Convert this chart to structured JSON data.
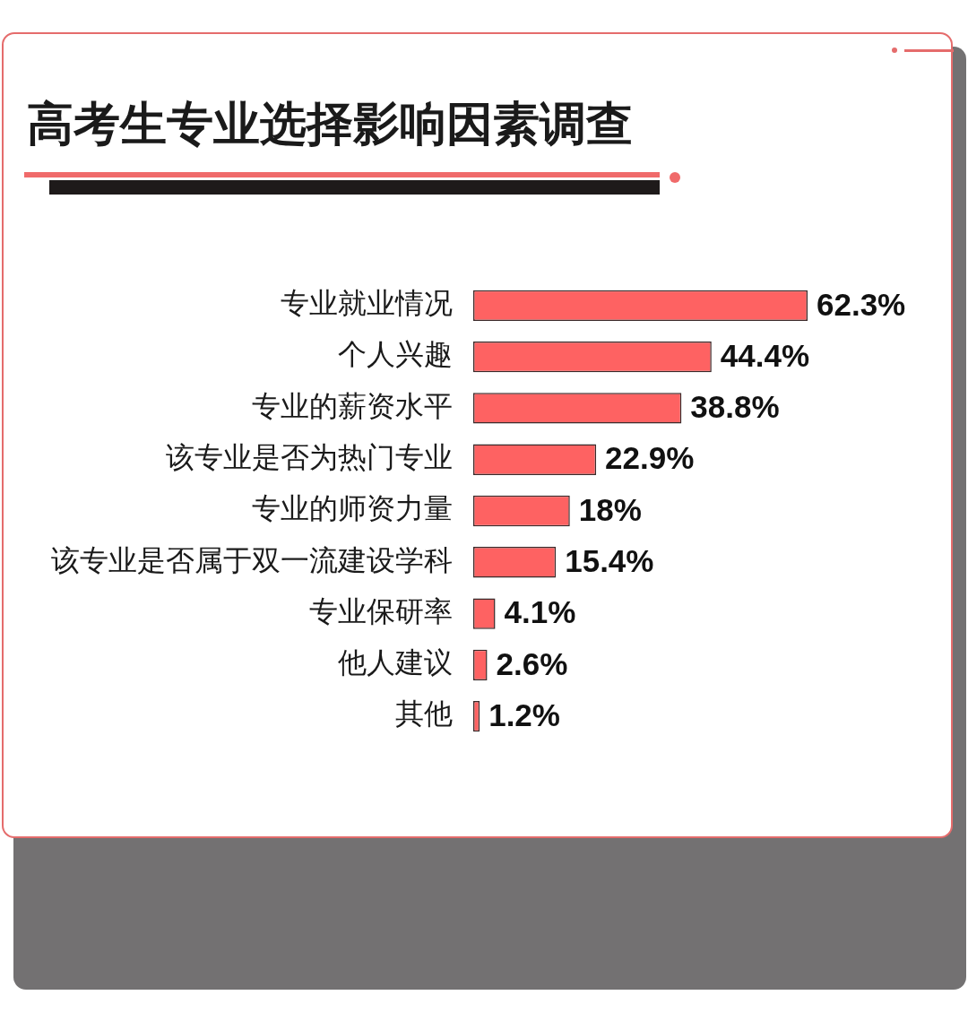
{
  "chart_data": {
    "type": "bar",
    "orientation": "horizontal",
    "title": "高考生专业选择影响因素调查",
    "categories": [
      "专业就业情况",
      "个人兴趣",
      "专业的薪资水平",
      "该专业是否为热门专业",
      "专业的师资力量",
      "该专业是否属于双一流建设学科",
      "专业保研率",
      "他人建议",
      "其他"
    ],
    "values": [
      62.3,
      44.4,
      38.8,
      22.9,
      18,
      15.4,
      4.1,
      2.6,
      1.2
    ],
    "value_labels": [
      "62.3%",
      "44.4%",
      "38.8%",
      "22.9%",
      "18%",
      "15.4%",
      "4.1%",
      "2.6%",
      "1.2%"
    ],
    "color": "#fe6262"
  }
}
